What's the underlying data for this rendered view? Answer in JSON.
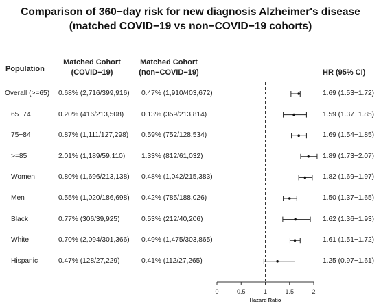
{
  "title_line1": "Comparison of 360−day risk for new diagnosis Alzheimer's disease",
  "title_line2": "(matched COVID−19 vs non−COVID−19 cohorts)",
  "headers": {
    "population": "Population",
    "covid_line1": "Matched Cohort",
    "covid_line2": "(COVID−19)",
    "noncovid_line1": "Matched Cohort",
    "noncovid_line2": "(non−COVID−19)",
    "hr": "HR (95% CI)"
  },
  "chart_data": {
    "type": "forest",
    "xlabel": "Hazard Ratio",
    "xlim": [
      0,
      2
    ],
    "xticks": [
      "0",
      "0.5",
      "1",
      "1.5",
      "2"
    ],
    "reference_line": 1,
    "rows": [
      {
        "population": "Overall (>=65)",
        "covid": "0.68% (2,716/399,916)",
        "noncovid": "0.47% (1,910/403,672)",
        "hr_text": "1.69 (1.53−1.72)",
        "hr": 1.69,
        "lo": 1.53,
        "hi": 1.72
      },
      {
        "population": "65−74",
        "covid": "0.20% (416/213,508)",
        "noncovid": "0.13% (359/213,814)",
        "hr_text": "1.59 (1.37−1.85)",
        "hr": 1.59,
        "lo": 1.37,
        "hi": 1.85
      },
      {
        "population": "75−84",
        "covid": "0.87% (1,111/127,298)",
        "noncovid": "0.59% (752/128,534)",
        "hr_text": "1.69 (1.54−1.85)",
        "hr": 1.69,
        "lo": 1.54,
        "hi": 1.85
      },
      {
        "population": ">=85",
        "covid": "2.01% (1,189/59,110)",
        "noncovid": "1.33% (812/61,032)",
        "hr_text": "1.89 (1.73−2.07)",
        "hr": 1.89,
        "lo": 1.73,
        "hi": 2.07
      },
      {
        "population": "Women",
        "covid": "0.80% (1,696/213,138)",
        "noncovid": "0.48% (1,042/215,383)",
        "hr_text": "1.82 (1.69−1.97)",
        "hr": 1.82,
        "lo": 1.69,
        "hi": 1.97
      },
      {
        "population": "Men",
        "covid": "0.55% (1,020/186,698)",
        "noncovid": "0.42% (785/188,026)",
        "hr_text": "1.50 (1.37−1.65)",
        "hr": 1.5,
        "lo": 1.37,
        "hi": 1.65
      },
      {
        "population": "Black",
        "covid": "0.77% (306/39,925)",
        "noncovid": "0.53% (212/40,206)",
        "hr_text": "1.62 (1.36−1.93)",
        "hr": 1.62,
        "lo": 1.36,
        "hi": 1.93
      },
      {
        "population": "White",
        "covid": "0.70% (2,094/301,366)",
        "noncovid": "0.49% (1,475/303,865)",
        "hr_text": "1.61 (1.51−1.72)",
        "hr": 1.61,
        "lo": 1.51,
        "hi": 1.72
      },
      {
        "population": "Hispanic",
        "covid": "0.47% (128/27,229)",
        "noncovid": "0.41% (112/27,265)",
        "hr_text": "1.25 (0.97−1.61)",
        "hr": 1.25,
        "lo": 0.97,
        "hi": 1.61
      }
    ]
  }
}
